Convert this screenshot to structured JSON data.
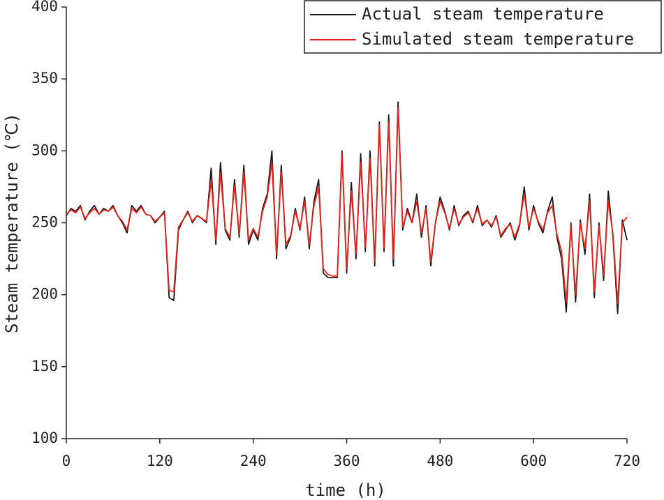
{
  "chart_data": {
    "type": "line",
    "xlabel": "time (h)",
    "ylabel": "Steam temperature (℃)",
    "x": [
      0,
      6,
      12,
      18,
      24,
      30,
      36,
      42,
      48,
      54,
      60,
      66,
      72,
      78,
      84,
      90,
      96,
      102,
      108,
      114,
      120,
      126,
      132,
      138,
      144,
      150,
      156,
      162,
      168,
      174,
      180,
      186,
      192,
      198,
      204,
      210,
      216,
      222,
      228,
      234,
      240,
      246,
      252,
      258,
      264,
      270,
      276,
      282,
      288,
      294,
      300,
      306,
      312,
      318,
      324,
      330,
      336,
      342,
      348,
      354,
      360,
      366,
      372,
      378,
      384,
      390,
      396,
      402,
      408,
      414,
      420,
      426,
      432,
      438,
      444,
      450,
      456,
      462,
      468,
      474,
      480,
      486,
      492,
      498,
      504,
      510,
      516,
      522,
      528,
      534,
      540,
      546,
      552,
      558,
      564,
      570,
      576,
      582,
      588,
      594,
      600,
      606,
      612,
      618,
      624,
      630,
      636,
      642,
      648,
      654,
      660,
      666,
      672,
      678,
      684,
      690,
      696,
      702,
      708,
      714,
      720
    ],
    "series": [
      {
        "name": "Actual steam temperature",
        "color": "#1a1a1a",
        "values": [
          255,
          260,
          258,
          262,
          252,
          258,
          262,
          256,
          260,
          258,
          262,
          255,
          250,
          243,
          262,
          258,
          262,
          256,
          255,
          250,
          254,
          258,
          198,
          196,
          245,
          252,
          258,
          250,
          255,
          253,
          250,
          288,
          235,
          292,
          245,
          238,
          280,
          240,
          290,
          235,
          245,
          238,
          260,
          270,
          300,
          225,
          290,
          232,
          240,
          260,
          245,
          268,
          232,
          265,
          280,
          215,
          212,
          212,
          212,
          300,
          215,
          278,
          225,
          298,
          230,
          300,
          220,
          320,
          230,
          325,
          220,
          334,
          245,
          260,
          250,
          270,
          240,
          262,
          220,
          250,
          268,
          258,
          245,
          262,
          248,
          255,
          258,
          250,
          262,
          248,
          252,
          247,
          255,
          240,
          245,
          250,
          238,
          248,
          275,
          245,
          262,
          250,
          243,
          258,
          268,
          240,
          225,
          188,
          250,
          195,
          252,
          228,
          270,
          198,
          250,
          210,
          272,
          240,
          187,
          252,
          238
        ]
      },
      {
        "name": "Simulated steam temperature",
        "color": "#e8221c",
        "values": [
          256,
          259,
          257,
          261,
          253,
          257,
          260,
          256,
          259,
          258,
          261,
          255,
          251,
          245,
          260,
          257,
          261,
          256,
          255,
          251,
          254,
          257,
          203,
          202,
          247,
          252,
          257,
          251,
          255,
          253,
          251,
          280,
          238,
          285,
          246,
          240,
          276,
          242,
          285,
          238,
          246,
          240,
          258,
          268,
          292,
          228,
          285,
          235,
          241,
          258,
          246,
          265,
          235,
          262,
          275,
          218,
          214,
          213,
          213,
          298,
          218,
          272,
          228,
          292,
          233,
          295,
          223,
          318,
          233,
          320,
          225,
          330,
          247,
          258,
          250,
          265,
          243,
          260,
          223,
          250,
          265,
          257,
          246,
          260,
          249,
          254,
          257,
          251,
          260,
          249,
          252,
          248,
          254,
          241,
          246,
          249,
          240,
          249,
          270,
          247,
          260,
          251,
          245,
          257,
          262,
          242,
          230,
          195,
          248,
          200,
          250,
          232,
          265,
          202,
          248,
          214,
          265,
          242,
          194,
          250,
          254
        ]
      }
    ],
    "xlim": [
      0,
      720
    ],
    "xticks": [
      0,
      120,
      240,
      360,
      480,
      600,
      720
    ],
    "ylim": [
      100,
      400
    ],
    "yticks": [
      100,
      150,
      200,
      250,
      300,
      350,
      400
    ],
    "legend": "upper right"
  }
}
